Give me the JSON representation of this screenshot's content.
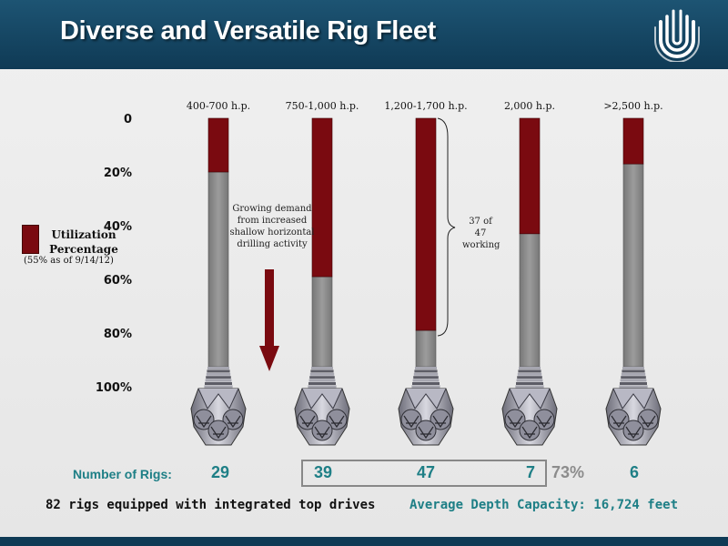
{
  "header": {
    "title": "Diverse and Versatile Rig Fleet"
  },
  "colors": {
    "header_bg": "#124462",
    "utilized": "#7a0a10",
    "idle": "#8a8a8a",
    "accent_teal": "#1e7f86"
  },
  "chart_data": {
    "type": "bar",
    "orientation": "vertical-inverted",
    "categories": [
      "400-700 h.p.",
      "750-1,000 h.p.",
      "1,200-1,700 h.p.",
      "2,000 h.p.",
      ">2,500 h.p."
    ],
    "series": [
      {
        "values": [
          20,
          59,
          79,
          43,
          17
        ]
      }
    ],
    "ylim": [
      0,
      100
    ],
    "yticks": [
      "0",
      "20%",
      "40%",
      "60%",
      "80%",
      "100%"
    ],
    "ytick_values": [
      0,
      20,
      40,
      60,
      80,
      100
    ],
    "legend": {
      "title": "Utilization Percentage",
      "note": "(55% as of 9/14/12)",
      "placement": "left"
    },
    "annotations": [
      {
        "text": "Growing demand from increased shallow horizontal drilling activity"
      },
      {
        "text": "37 of 47 working"
      }
    ]
  },
  "rigs": {
    "label": "Number of Rigs:",
    "counts": [
      "29",
      "39",
      "47",
      "7",
      "6"
    ],
    "group_percent": "73%"
  },
  "footer": {
    "top_drives": "82 rigs equipped with integrated top drives",
    "depth": "Average Depth Capacity: 16,724 feet"
  }
}
